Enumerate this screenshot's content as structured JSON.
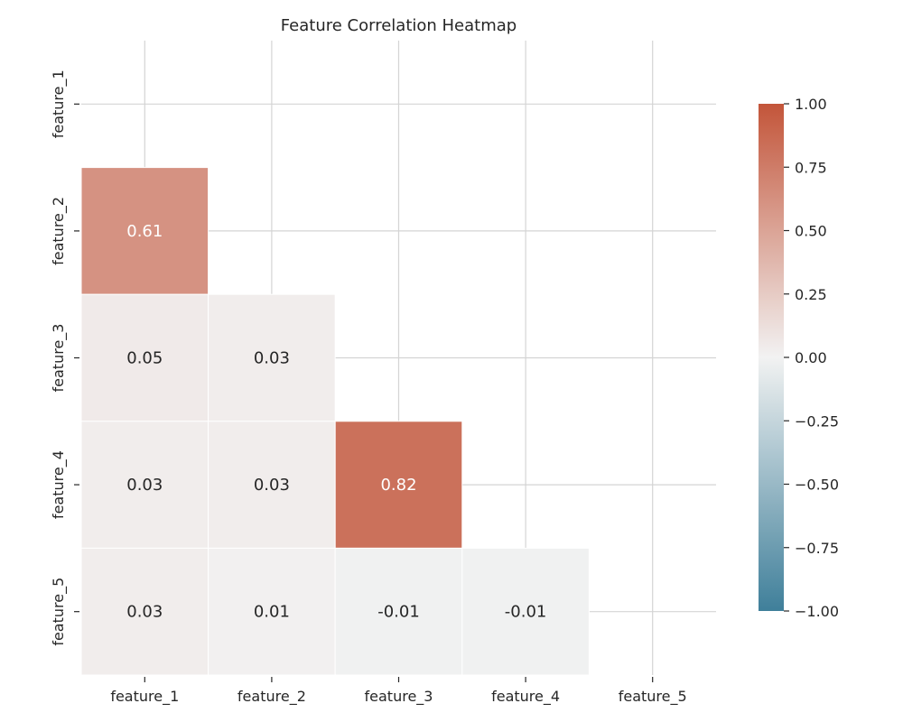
{
  "chart_data": {
    "type": "heatmap",
    "title": "Feature Correlation Heatmap",
    "row_labels": [
      "feature_1",
      "feature_2",
      "feature_3",
      "feature_4",
      "feature_5"
    ],
    "col_labels": [
      "feature_1",
      "feature_2",
      "feature_3",
      "feature_4",
      "feature_5"
    ],
    "mask": "upper-triangle-including-diagonal",
    "values": [
      [
        null,
        null,
        null,
        null,
        null
      ],
      [
        0.61,
        null,
        null,
        null,
        null
      ],
      [
        0.05,
        0.03,
        null,
        null,
        null
      ],
      [
        0.03,
        0.03,
        0.82,
        null,
        null
      ],
      [
        0.03,
        0.01,
        -0.01,
        -0.01,
        null
      ]
    ],
    "cell_labels": [
      [
        null,
        null,
        null,
        null,
        null
      ],
      [
        "0.61",
        null,
        null,
        null,
        null
      ],
      [
        "0.05",
        "0.03",
        null,
        null,
        null
      ],
      [
        "0.03",
        "0.03",
        "0.82",
        null,
        null
      ],
      [
        "0.03",
        "0.01",
        "-0.01",
        "-0.01",
        null
      ]
    ],
    "colorbar": {
      "range": [
        -1.0,
        1.0
      ],
      "ticks": [
        1.0,
        0.75,
        0.5,
        0.25,
        0.0,
        -0.25,
        -0.5,
        -0.75,
        -1.0
      ],
      "tick_labels": [
        "1.00",
        "0.75",
        "0.50",
        "0.25",
        "0.00",
        "−0.25",
        "−0.50",
        "−0.75",
        "−1.00"
      ],
      "colors": {
        "low": "#3f7f9a",
        "mid": "#f2f2f2",
        "high": "#c3553a"
      }
    },
    "grid": true,
    "legend": "right"
  }
}
